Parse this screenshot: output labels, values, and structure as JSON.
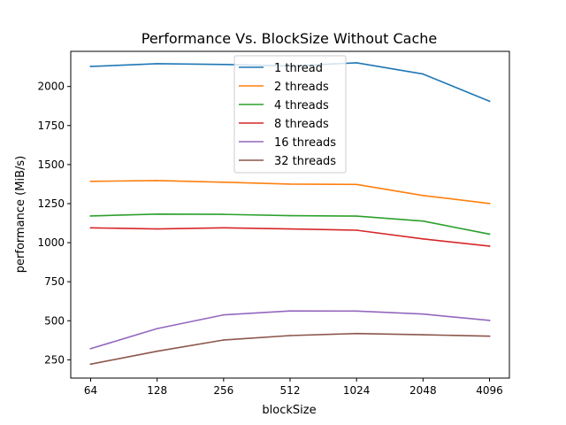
{
  "chart_data": {
    "type": "line",
    "title": "Performance Vs. BlockSize Without Cache",
    "xlabel": "blockSize",
    "ylabel": "performance (MiB/s)",
    "x": [
      "64",
      "128",
      "256",
      "512",
      "1024",
      "2048",
      "4096"
    ],
    "yticks": [
      250,
      500,
      750,
      1000,
      1250,
      1500,
      1750,
      2000
    ],
    "ylim": [
      133,
      2225
    ],
    "grid": false,
    "legend_position": "top-center",
    "series": [
      {
        "name": "1 thread",
        "color": "#1f77b4",
        "values": [
          2128,
          2146,
          2141,
          2131,
          2152,
          2080,
          1906
        ]
      },
      {
        "name": "2 threads",
        "color": "#ff7f0e",
        "values": [
          1393,
          1398,
          1387,
          1375,
          1373,
          1302,
          1251
        ]
      },
      {
        "name": "4 threads",
        "color": "#2ca02c",
        "values": [
          1171,
          1183,
          1181,
          1173,
          1170,
          1138,
          1055
        ]
      },
      {
        "name": "8 threads",
        "color": "#d62728",
        "values": [
          1095,
          1088,
          1095,
          1088,
          1080,
          1024,
          978
        ]
      },
      {
        "name": "16 threads",
        "color": "#9467bd",
        "values": [
          321,
          450,
          538,
          563,
          562,
          543,
          502
        ]
      },
      {
        "name": "32 threads",
        "color": "#8c564b",
        "values": [
          222,
          305,
          377,
          405,
          418,
          410,
          401
        ]
      }
    ]
  }
}
